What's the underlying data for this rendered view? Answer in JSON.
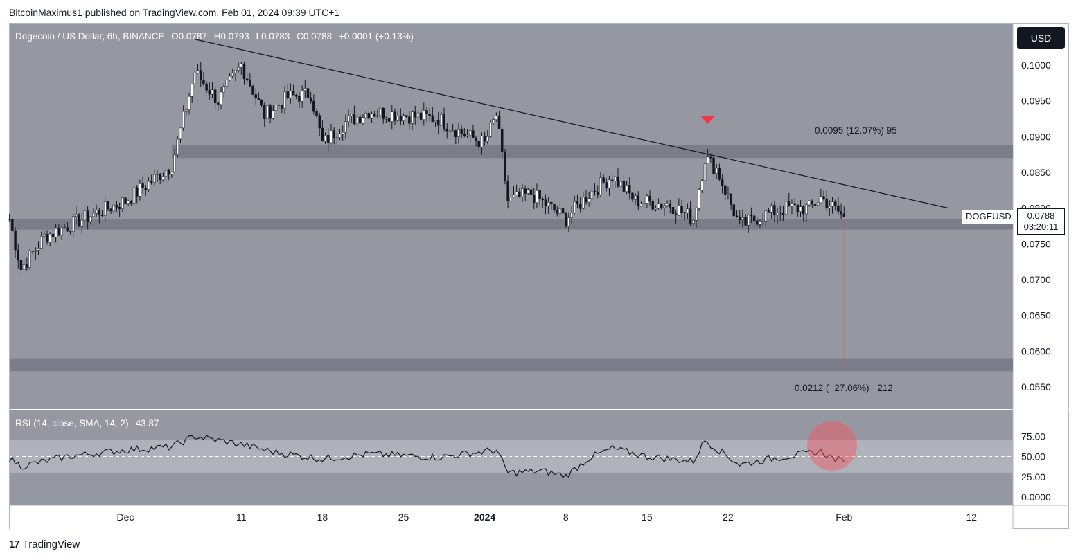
{
  "publisher": "BitcoinMaximus1 published on TradingView.com, Feb 01, 2024 09:39 UTC+1",
  "legend": {
    "symbol": "Dogecoin / US Dollar, 6h, BINANCE",
    "open_label": "O",
    "open": "0.0787",
    "high_label": "H",
    "high": "0.0793",
    "low_label": "L",
    "low": "0.0783",
    "close_label": "C",
    "close": "0.0788",
    "change": "+0.0001 (+0.13%)"
  },
  "rsi_legend": {
    "label": "RSI (14, close, SMA, 14, 2)",
    "value": "43.87"
  },
  "currency_button": "USD",
  "price_tag": {
    "symbol": "DOGEUSD",
    "price": "0.0788",
    "countdown": "03:20:11"
  },
  "annotations": {
    "up_measure": "0.0095 (12.07%) 95",
    "down_measure": "−0.0212 (−27.06%) −212"
  },
  "footer": {
    "brand": "TradingView",
    "logo": "tv-logo-icon"
  },
  "colors": {
    "panel_bg": "#9598a1",
    "candle": "#ffffff",
    "wick": "#131722",
    "zone": "#787b86",
    "marker": "#f23645",
    "rsi_band": "#b2b5be",
    "rsi_circle": "#f7525f"
  },
  "chart_data": {
    "type": "candlestick",
    "symbol": "DOGEUSD",
    "interval": "6h",
    "y_axis": {
      "ticks": [
        "0.1000",
        "0.0950",
        "0.0900",
        "0.0850",
        "0.0800",
        "0.0750",
        "0.0700",
        "0.0650",
        "0.0600",
        "0.0550"
      ],
      "range": [
        0.0519,
        0.1058
      ]
    },
    "x_axis": {
      "ticks": [
        "Dec",
        "11",
        "18",
        "25",
        "2024",
        "8",
        "15",
        "22",
        "Feb",
        "12"
      ]
    },
    "support_zones": [
      [
        0.087,
        0.0888
      ],
      [
        0.077,
        0.0785
      ],
      [
        0.0572,
        0.059
      ]
    ],
    "trendline": {
      "from": [
        "Dec 7",
        0.1036
      ],
      "to": [
        "Feb 10",
        0.08
      ]
    },
    "marker": {
      "date": "Jan 20",
      "value": 0.0908,
      "shape": "down-triangle"
    },
    "close_key": [
      [
        "Nov 21",
        0.0785
      ],
      [
        "Nov 22",
        0.0715
      ],
      [
        "Nov 24",
        0.076
      ],
      [
        "Nov 26",
        0.0775
      ],
      [
        "Nov 28",
        0.079
      ],
      [
        "Dec 1",
        0.081
      ],
      [
        "Dec 3",
        0.0835
      ],
      [
        "Dec 5",
        0.086
      ],
      [
        "Dec 7",
        0.099
      ],
      [
        "Dec 9",
        0.095
      ],
      [
        "Dec 11",
        0.1
      ],
      [
        "Dec 13",
        0.093
      ],
      [
        "Dec 15",
        0.0955
      ],
      [
        "Dec 17",
        0.096
      ],
      [
        "Dec 18",
        0.089
      ],
      [
        "Dec 20",
        0.092
      ],
      [
        "Dec 22",
        0.0935
      ],
      [
        "Dec 25",
        0.093
      ],
      [
        "Dec 28",
        0.0925
      ],
      [
        "Dec 30",
        0.0905
      ],
      [
        "Jan 1",
        0.089
      ],
      [
        "Jan 2",
        0.093
      ],
      [
        "Jan 3",
        0.081
      ],
      [
        "Jan 5",
        0.082
      ],
      [
        "Jan 8",
        0.0785
      ],
      [
        "Jan 10",
        0.082
      ],
      [
        "Jan 12",
        0.0845
      ],
      [
        "Jan 14",
        0.081
      ],
      [
        "Jan 17",
        0.0805
      ],
      [
        "Jan 19",
        0.0785
      ],
      [
        "Jan 20",
        0.087
      ],
      [
        "Jan 21",
        0.0855
      ],
      [
        "Jan 22",
        0.0815
      ],
      [
        "Jan 23",
        0.0775
      ],
      [
        "Jan 25",
        0.079
      ],
      [
        "Jan 27",
        0.08
      ],
      [
        "Jan 29",
        0.08
      ],
      [
        "Jan 30",
        0.0815
      ],
      [
        "Feb 1",
        0.0788
      ]
    ],
    "rsi": {
      "levels": [
        "75.00",
        "50.00",
        "25.00",
        "0.0000"
      ],
      "band": [
        30,
        70
      ],
      "key": [
        [
          "Nov 21",
          48
        ],
        [
          "Nov 22",
          38
        ],
        [
          "Nov 26",
          50
        ],
        [
          "Dec 1",
          58
        ],
        [
          "Dec 5",
          62
        ],
        [
          "Dec 7",
          75
        ],
        [
          "Dec 11",
          65
        ],
        [
          "Dec 14",
          55
        ],
        [
          "Dec 18",
          47
        ],
        [
          "Dec 22",
          53
        ],
        [
          "Dec 28",
          49
        ],
        [
          "Jan 2",
          58
        ],
        [
          "Jan 3",
          30
        ],
        [
          "Jan 6",
          32
        ],
        [
          "Jan 8",
          26
        ],
        [
          "Jan 10",
          48
        ],
        [
          "Jan 12",
          60
        ],
        [
          "Jan 15",
          50
        ],
        [
          "Jan 19",
          44
        ],
        [
          "Jan 20",
          70
        ],
        [
          "Jan 21",
          60
        ],
        [
          "Jan 23",
          40
        ],
        [
          "Jan 26",
          48
        ],
        [
          "Jan 30",
          56
        ],
        [
          "Jan 31",
          48
        ],
        [
          "Feb 1",
          43.87
        ]
      ]
    }
  }
}
